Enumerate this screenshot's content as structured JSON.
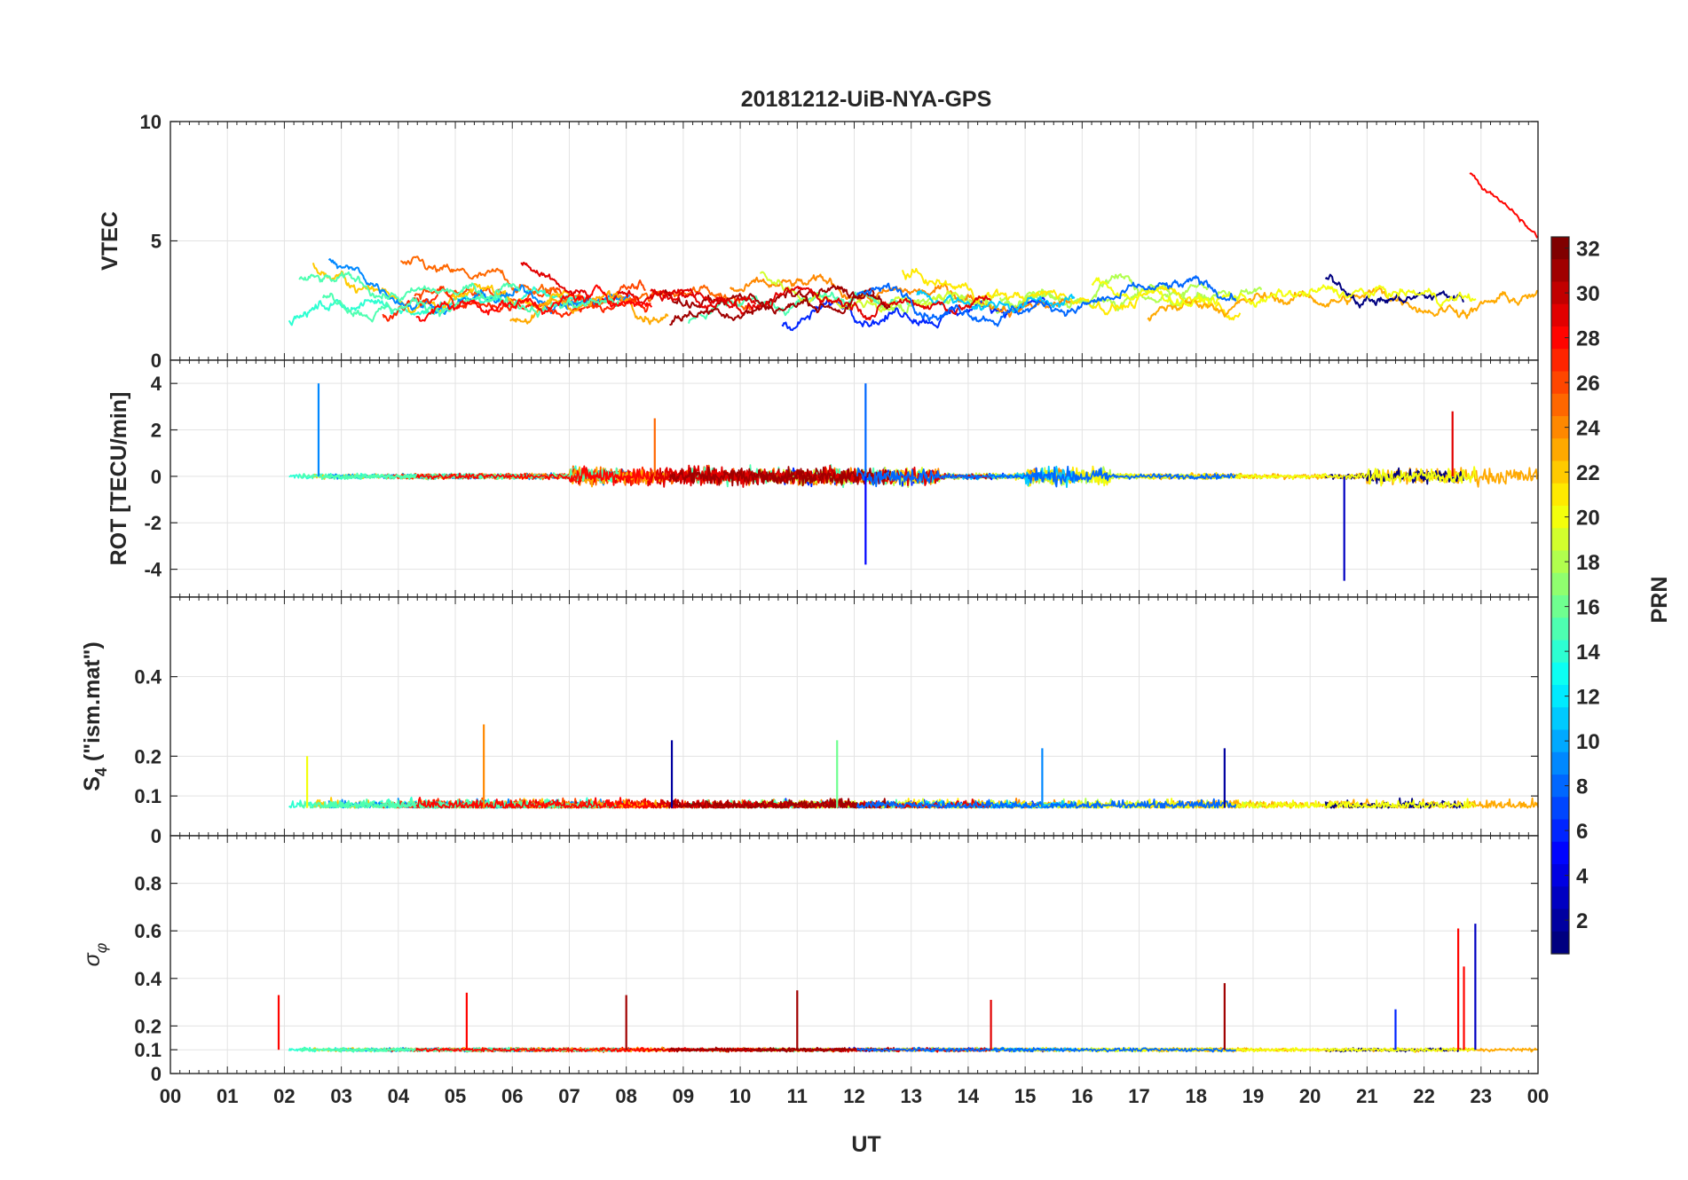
{
  "chart_data": {
    "type": "line",
    "title": "20181212-UiB-NYA-GPS",
    "xlabel": "UT",
    "x_ticklabels": [
      "00",
      "01",
      "02",
      "03",
      "04",
      "05",
      "06",
      "07",
      "08",
      "09",
      "10",
      "11",
      "12",
      "13",
      "14",
      "15",
      "16",
      "17",
      "18",
      "19",
      "20",
      "21",
      "22",
      "23",
      "00"
    ],
    "xlim_hours": [
      0,
      24
    ],
    "grid": true,
    "colorbar": {
      "label": "PRN",
      "range": [
        1,
        32
      ],
      "ticks": [
        "2",
        "4",
        "6",
        "8",
        "10",
        "12",
        "14",
        "16",
        "18",
        "20",
        "22",
        "24",
        "26",
        "28",
        "30",
        "32"
      ],
      "colormap": "jet",
      "placement": "right"
    },
    "panels": [
      {
        "id": "vtec",
        "ylabel": "VTEC",
        "ylim": [
          0,
          10
        ],
        "yticks": [
          "0",
          "5",
          "10"
        ],
        "series_summary": "VTEC per PRN between about 0.5 and 8 TECU; baseline values mostly 1-4 TECU; peak near 7.8 at 22.8 UT (PRN ~28)"
      },
      {
        "id": "rot",
        "ylabel": "ROT [TECU/min]",
        "ylim": [
          -5.2,
          5
        ],
        "yticks": [
          "-4",
          "-2",
          "0",
          "2",
          "4"
        ],
        "series_summary": "ROT fluctuates around 0 with bursts; spikes to +4 at ~2.6 UT and ~12.2 UT, -3.8 at ~12.2 UT, -4.5 at ~20.6 UT"
      },
      {
        "id": "s4",
        "ylabel": "S4 (\"ism.mat\")",
        "ylabel_main": "S",
        "ylabel_sub": "4",
        "ylabel_rest": " (\"ism.mat\")",
        "ylim": [
          0,
          0.6
        ],
        "yticks": [
          "0",
          "0.1",
          "0.2",
          "0.4"
        ],
        "series_summary": "S4 mostly 0.03-0.12; peaks ~0.28 at 5.5 UT, ~0.24 at 8.8 UT, ~0.24 at 11.7 UT, ~0.22 at 15.3 UT, ~0.22 at 18.5 UT"
      },
      {
        "id": "sigma_phi",
        "ylabel": "σφ",
        "ylabel_main": "σ",
        "ylabel_sub": "φ",
        "ylim": [
          0,
          1
        ],
        "yticks": [
          "0",
          "0.1",
          "0.2",
          "0.4",
          "0.6",
          "0.8"
        ],
        "series_summary": "σφ mostly 0.08-0.12; spikes 0.33 at 1.9 UT, 0.34 at 5.2 UT, 0.35 at 11 UT, 0.33 at 8 UT, 0.38 at 18.5 UT, 0.61 at 22.6 UT, 0.63 at 22.9 UT"
      }
    ]
  }
}
